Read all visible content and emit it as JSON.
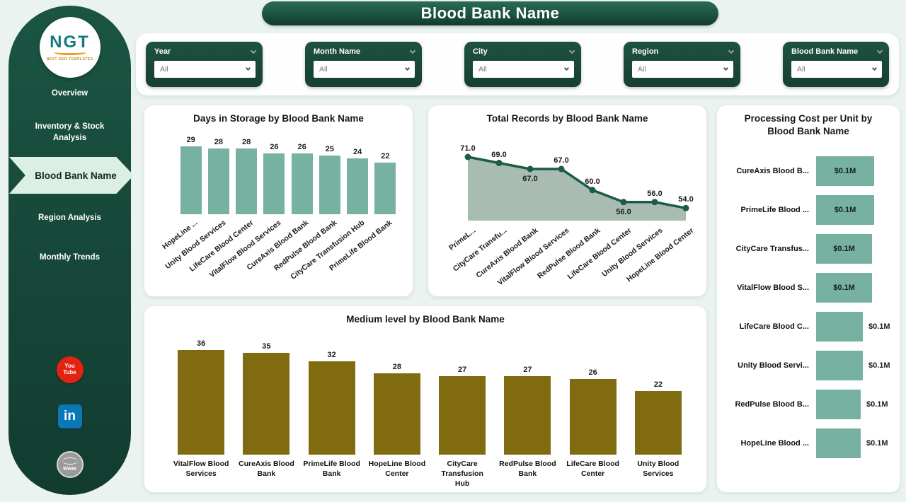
{
  "app": {
    "title": "Blood Bank Name"
  },
  "sidebar": {
    "logo": {
      "text": "NGT",
      "caption": "NEXT GEN TEMPLATES"
    },
    "items": [
      {
        "label": "Overview",
        "selected": false
      },
      {
        "label": "Inventory & Stock Analysis",
        "selected": false
      },
      {
        "label": "Blood Bank Name",
        "selected": true
      },
      {
        "label": "Region Analysis",
        "selected": false
      },
      {
        "label": "Monthly Trends",
        "selected": false
      }
    ],
    "social": [
      {
        "name": "youtube",
        "text_top": "You",
        "text_bottom": "Tube"
      },
      {
        "name": "linkedin",
        "text": "in"
      },
      {
        "name": "website",
        "text": "www"
      }
    ]
  },
  "filters": [
    {
      "label": "Year",
      "value": "All"
    },
    {
      "label": "Month Name",
      "value": "All"
    },
    {
      "label": "City",
      "value": "All"
    },
    {
      "label": "Region",
      "value": "All"
    },
    {
      "label": "Blood Bank Name",
      "value": "All"
    }
  ],
  "colors": {
    "sidebar_green": "#17493a",
    "mint_selected": "#dcefe5",
    "teal_bar": "#76b1a1",
    "olive_bar": "#816b10",
    "area_line": "#1c5b46",
    "area_fill": "#a8bcb1",
    "page_bg": "#ebf3f0"
  },
  "chart_data": [
    {
      "id": "days_in_storage",
      "type": "bar",
      "title": "Days in Storage by Blood Bank Name",
      "categories": [
        "HopeLine ...",
        "Unity Blood Services",
        "LifeCare Blood Center",
        "VitalFlow Blood Services",
        "CureAxis Blood Bank",
        "RedPulse Blood Bank",
        "CityCare Transfusion Hub",
        "PrimeLife Blood Bank"
      ],
      "values": [
        29,
        28,
        28,
        26,
        26,
        25,
        24,
        22
      ],
      "ylim": [
        0,
        29
      ],
      "bar_color": "#76b1a1",
      "x_label_rotation": -38,
      "grid": false
    },
    {
      "id": "total_records",
      "type": "area",
      "title": "Total Records by Blood Bank Name",
      "categories": [
        "PrimeL...",
        "CityCare Transfu...",
        "CureAxis Blood Bank",
        "VitalFlow Blood Services",
        "RedPulse Blood Bank",
        "LifeCare Blood Center",
        "Unity Blood Services",
        "HopeLine Blood Center"
      ],
      "values": [
        71,
        69,
        67,
        67,
        60,
        56,
        56,
        54
      ],
      "data_labels": [
        "71.0",
        "69.0",
        "67.0",
        "67.0",
        "60.0",
        "56.0",
        "56.0",
        "54.0"
      ],
      "label_positions": [
        "above",
        "above",
        "below",
        "above",
        "above",
        "below",
        "above",
        "above"
      ],
      "ylim": [
        47.5,
        73
      ],
      "line_color": "#1c5b46",
      "fill_color": "#a8bcb1",
      "x_label_rotation": -38,
      "grid": false
    },
    {
      "id": "processing_cost",
      "type": "hbar",
      "title": "Processing Cost per Unit by Blood Bank Name",
      "categories": [
        "CureAxis Blood B...",
        "PrimeLife Blood ...",
        "CityCare Transfus...",
        "VitalFlow Blood S...",
        "LifeCare Blood C...",
        "Unity Blood Servi...",
        "RedPulse Blood B...",
        "HopeLine Blood ..."
      ],
      "values": [
        0.13,
        0.13,
        0.125,
        0.125,
        0.105,
        0.105,
        0.1,
        0.1
      ],
      "display_values": [
        "$0.1M",
        "$0.1M",
        "$0.1M",
        "$0.1M",
        "$0.1M",
        "$0.1M",
        "$0.1M",
        "$0.1M"
      ],
      "label_inside": [
        true,
        true,
        true,
        true,
        false,
        false,
        false,
        false
      ],
      "bar_color": "#76b1a1",
      "grid": false
    },
    {
      "id": "medium_level",
      "type": "bar",
      "title": "Medium level by Blood Bank Name",
      "categories": [
        "VitalFlow Blood Services",
        "CureAxis Blood Bank",
        "PrimeLife Blood Bank",
        "HopeLine Blood Center",
        "CityCare Transfusion Hub",
        "RedPulse Blood Bank",
        "LifeCare Blood Center",
        "Unity Blood Services"
      ],
      "values": [
        36,
        35,
        32,
        28,
        27,
        27,
        26,
        22
      ],
      "ylim": [
        0,
        36
      ],
      "bar_color": "#816b10",
      "x_label_rotation": 0,
      "grid": false
    }
  ]
}
